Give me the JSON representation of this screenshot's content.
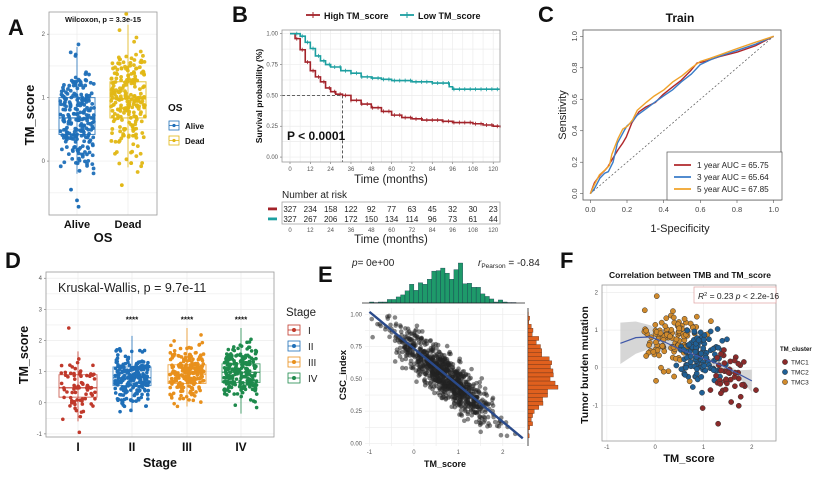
{
  "figure": {
    "panel_labels": [
      "A",
      "B",
      "C",
      "D",
      "E",
      "F"
    ]
  },
  "chart_data": [
    {
      "panel": "A",
      "type": "box",
      "title": "",
      "annotation": "Wilcoxon, p = 3.3e-15",
      "xlabel": "OS",
      "ylabel": "TM_score",
      "categories": [
        "Alive",
        "Dead"
      ],
      "yticks": [
        "0",
        "1",
        "2"
      ],
      "ylim": [
        -0.85,
        2.35
      ],
      "legend": {
        "title": "OS",
        "position": "right",
        "entries": [
          "Alive",
          "Dead"
        ]
      },
      "colors": {
        "Alive": "#1f6fb8",
        "Dead": "#e2b714"
      },
      "boxes": [
        {
          "name": "Alive",
          "q1": 0.42,
          "median": 0.68,
          "q3": 1.0,
          "min": -0.2,
          "max": 1.8,
          "outliers": [
            -0.45,
            -0.62,
            -0.72
          ]
        },
        {
          "name": "Dead",
          "q1": 0.68,
          "median": 0.98,
          "q3": 1.25,
          "min": -0.1,
          "max": 2.15,
          "outliers": [
            -0.38,
            2.32
          ]
        }
      ]
    },
    {
      "panel": "B",
      "type": "line",
      "subtype": "kaplan-meier",
      "xlabel": "Time (months)",
      "ylabel": "Survival probability (%)",
      "xticks": [
        "0",
        "12",
        "24",
        "36",
        "48",
        "60",
        "72",
        "84",
        "96",
        "108",
        "120"
      ],
      "yticks": [
        "0.00",
        "0.25",
        "0.50",
        "0.75",
        "1.00"
      ],
      "xlim": [
        0,
        124
      ],
      "ylim": [
        0,
        1.0
      ],
      "annotation": "P < 0.0001",
      "median_survival_high": 31,
      "legend": {
        "position": "top",
        "entries": [
          "High TM_score",
          "Low TM_score"
        ]
      },
      "series": [
        {
          "name": "High TM_score",
          "color": "#a3232a",
          "x": [
            0,
            3,
            6,
            9,
            12,
            15,
            18,
            21,
            24,
            27,
            31,
            36,
            42,
            48,
            54,
            60,
            66,
            72,
            78,
            84,
            90,
            96,
            102,
            108,
            114,
            120,
            124
          ],
          "y": [
            1.0,
            0.96,
            0.87,
            0.77,
            0.7,
            0.65,
            0.61,
            0.56,
            0.53,
            0.51,
            0.5,
            0.46,
            0.43,
            0.4,
            0.37,
            0.34,
            0.32,
            0.31,
            0.3,
            0.3,
            0.29,
            0.28,
            0.28,
            0.27,
            0.26,
            0.25,
            0.24
          ]
        },
        {
          "name": "Low TM_score",
          "color": "#1c9fa0",
          "x": [
            0,
            3,
            6,
            9,
            12,
            15,
            18,
            21,
            24,
            30,
            36,
            42,
            48,
            54,
            60,
            66,
            72,
            78,
            84,
            90,
            94,
            96,
            102,
            108,
            114,
            120,
            124
          ],
          "y": [
            1.0,
            1.0,
            0.98,
            0.93,
            0.88,
            0.82,
            0.78,
            0.75,
            0.73,
            0.7,
            0.68,
            0.65,
            0.64,
            0.63,
            0.62,
            0.62,
            0.61,
            0.61,
            0.6,
            0.6,
            0.57,
            0.55,
            0.55,
            0.55,
            0.55,
            0.55,
            0.55
          ]
        }
      ],
      "risk_table": {
        "title": "Number at risk",
        "xlabel": "Time (months)",
        "rows": [
          {
            "name": "High TM_score",
            "values": [
              327,
              234,
              158,
              122,
              92,
              77,
              63,
              45,
              32,
              30,
              23
            ]
          },
          {
            "name": "Low TM_score",
            "values": [
              327,
              267,
              206,
              172,
              150,
              134,
              114,
              96,
              73,
              61,
              44
            ]
          }
        ]
      }
    },
    {
      "panel": "C",
      "type": "line",
      "subtype": "roc",
      "title": "Train",
      "xlabel": "1-Specificity",
      "ylabel": "Sensitivity",
      "xticks": [
        "0.0",
        "0.2",
        "0.4",
        "0.6",
        "0.8",
        "1.0"
      ],
      "yticks": [
        "0.0",
        "0.2",
        "0.4",
        "0.6",
        "0.8",
        "1.0"
      ],
      "xlim": [
        0,
        1
      ],
      "ylim": [
        0,
        1
      ],
      "legend": {
        "position": "bottom-right"
      },
      "series": [
        {
          "name": "1 year AUC = 65.75",
          "color": "#b0282c",
          "x": [
            0,
            0.02,
            0.05,
            0.08,
            0.1,
            0.12,
            0.15,
            0.18,
            0.2,
            0.23,
            0.26,
            0.3,
            0.35,
            0.4,
            0.45,
            0.5,
            0.55,
            0.58,
            0.62,
            0.7,
            0.8,
            0.9,
            1.0
          ],
          "y": [
            0,
            0.07,
            0.12,
            0.15,
            0.17,
            0.22,
            0.28,
            0.32,
            0.36,
            0.45,
            0.52,
            0.55,
            0.58,
            0.63,
            0.68,
            0.72,
            0.78,
            0.83,
            0.84,
            0.87,
            0.9,
            0.94,
            1.0
          ]
        },
        {
          "name": "3 year AUC = 65.64",
          "color": "#3a7cc8",
          "x": [
            0,
            0.02,
            0.05,
            0.08,
            0.1,
            0.12,
            0.15,
            0.18,
            0.2,
            0.23,
            0.26,
            0.3,
            0.35,
            0.4,
            0.45,
            0.5,
            0.55,
            0.6,
            0.65,
            0.7,
            0.8,
            0.9,
            1.0
          ],
          "y": [
            0,
            0.03,
            0.1,
            0.13,
            0.14,
            0.2,
            0.32,
            0.4,
            0.43,
            0.46,
            0.5,
            0.54,
            0.58,
            0.62,
            0.66,
            0.71,
            0.76,
            0.82,
            0.85,
            0.87,
            0.91,
            0.95,
            1.0
          ]
        },
        {
          "name": "5 year AUC = 67.85",
          "color": "#f0a22a",
          "x": [
            0,
            0.02,
            0.05,
            0.08,
            0.1,
            0.12,
            0.15,
            0.18,
            0.2,
            0.23,
            0.26,
            0.3,
            0.35,
            0.4,
            0.45,
            0.5,
            0.55,
            0.6,
            0.65,
            0.7,
            0.8,
            0.9,
            1.0
          ],
          "y": [
            0,
            0.06,
            0.12,
            0.15,
            0.18,
            0.25,
            0.35,
            0.41,
            0.43,
            0.47,
            0.53,
            0.58,
            0.62,
            0.66,
            0.71,
            0.75,
            0.8,
            0.84,
            0.86,
            0.88,
            0.92,
            0.96,
            1.0
          ]
        }
      ],
      "reference_line": "diagonal"
    },
    {
      "panel": "D",
      "type": "box",
      "annotation": "Kruskal-Wallis, p = 9.7e-11",
      "xlabel": "Stage",
      "ylabel": "TM_score",
      "categories": [
        "I",
        "II",
        "III",
        "IV"
      ],
      "yticks": [
        "-1",
        "0",
        "1",
        "2",
        "3",
        "4"
      ],
      "ylim": [
        -1.1,
        4.2
      ],
      "significance": [
        "",
        "****",
        "****",
        "****"
      ],
      "legend": {
        "title": "Stage",
        "position": "right",
        "entries": [
          "I",
          "II",
          "III",
          "IV"
        ]
      },
      "colors": {
        "I": "#c0392b",
        "II": "#1f6fb8",
        "III": "#e8901c",
        "IV": "#1e8a4c"
      },
      "boxes": [
        {
          "name": "I",
          "q1": 0.18,
          "median": 0.48,
          "q3": 0.9,
          "min": -0.6,
          "max": 1.65,
          "outliers": [
            2.4,
            -0.95
          ]
        },
        {
          "name": "II",
          "q1": 0.55,
          "median": 0.8,
          "q3": 1.15,
          "min": -0.3,
          "max": 2.15
        },
        {
          "name": "III",
          "q1": 0.62,
          "median": 0.92,
          "q3": 1.22,
          "min": -0.12,
          "max": 2.4
        },
        {
          "name": "IV",
          "q1": 0.65,
          "median": 0.98,
          "q3": 1.25,
          "min": -0.35,
          "max": 2.4
        }
      ]
    },
    {
      "panel": "E",
      "type": "scatter",
      "xlabel": "TM_score",
      "ylabel": "CSC_index",
      "xticks": [
        "-1",
        "0",
        "1",
        "2"
      ],
      "yticks": [
        "0.00",
        "0.25",
        "0.50",
        "0.75",
        "1.00"
      ],
      "xlim": [
        -1.1,
        2.5
      ],
      "ylim": [
        -0.02,
        1.05
      ],
      "annotation_left": "p= 0e+00",
      "annotation_right_prefix": "r",
      "annotation_right_sub": "Pearson",
      "annotation_right_value": "= -0.84",
      "fit_line": {
        "x": [
          -1.0,
          2.45
        ],
        "y": [
          1.02,
          0.04
        ],
        "color": "#2a4a8a"
      },
      "point_color": "#222222",
      "top_marginal_color": "#1e9a6a",
      "right_marginal_color": "#e0601e",
      "cloud": {
        "center_x": 0.7,
        "center_y": 0.48,
        "n": 900
      }
    },
    {
      "panel": "F",
      "type": "scatter",
      "title": "Correlation between TMB and TM_score",
      "xlabel": "TM_score",
      "ylabel": "Tumor burden mutation",
      "xticks": [
        "-1",
        "0",
        "1",
        "2"
      ],
      "yticks": [
        "-1",
        "0",
        "1",
        "2"
      ],
      "xlim": [
        -1.1,
        2.5
      ],
      "ylim": [
        -1.95,
        2.2
      ],
      "annotation": "R² = 0.23 p < 2.2e-16",
      "annotation_parts": {
        "r": "R",
        "sup": "2",
        "rest": " = 0.23 ",
        "p": "p",
        "tail": " < 2.2e-16"
      },
      "legend": {
        "title": "TM_cluster",
        "position": "right",
        "entries": [
          "TMC1",
          "TMC2",
          "TMC3"
        ]
      },
      "colors": {
        "TMC1": "#8b2a2a",
        "TMC2": "#1f5f95",
        "TMC3": "#d08a2c"
      },
      "smooth": {
        "x": [
          -0.72,
          -0.4,
          -0.1,
          0.2,
          0.5,
          0.8,
          1.1,
          1.4,
          1.7,
          2.0
        ],
        "y": [
          0.65,
          0.8,
          0.82,
          0.68,
          0.5,
          0.35,
          0.2,
          0.05,
          -0.15,
          -0.35
        ],
        "color": "#3f57a8"
      }
    }
  ]
}
